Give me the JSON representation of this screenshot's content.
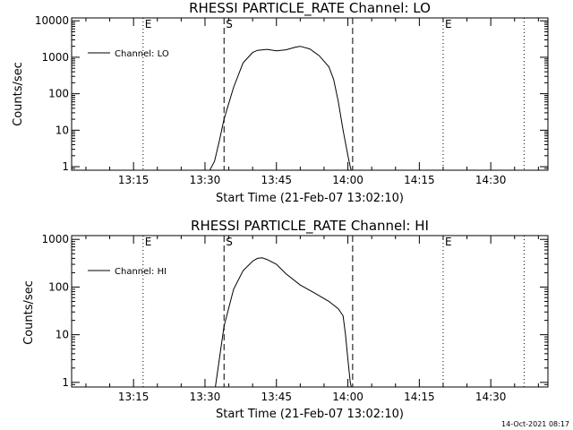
{
  "chart_data": [
    {
      "type": "line",
      "title": "RHESSI PARTICLE_RATE Channel: LO",
      "xlabel": "Start Time (21-Feb-07 13:02:10)",
      "ylabel": "Counts/sec",
      "yscale": "log",
      "xlim": [
        "13:02",
        "14:42"
      ],
      "ylim": [
        0.8,
        12000
      ],
      "xticks": [
        "13:15",
        "13:30",
        "13:45",
        "14:00",
        "14:15",
        "14:30"
      ],
      "yticks": [
        "1",
        "10",
        "100",
        "1000",
        "10000"
      ],
      "legend": {
        "position": "top-left",
        "entries": [
          "Channel: LO"
        ]
      },
      "series": [
        {
          "name": "Channel: LO",
          "x": [
            "13:30:30",
            "13:32",
            "13:33",
            "13:34",
            "13:36",
            "13:38",
            "13:40",
            "13:41",
            "13:43",
            "13:45",
            "13:47",
            "13:49",
            "13:50",
            "13:52",
            "13:54",
            "13:56",
            "13:57",
            "13:58",
            "13:59",
            "14:00",
            "14:00:30",
            "14:01"
          ],
          "y": [
            0.6,
            1.4,
            5,
            20,
            150,
            700,
            1350,
            1550,
            1650,
            1500,
            1600,
            1900,
            2000,
            1700,
            1100,
            550,
            250,
            60,
            10,
            2,
            1,
            0.6
          ]
        }
      ],
      "vlines": [
        {
          "x": "13:17",
          "style": "dotted",
          "label": "E"
        },
        {
          "x": "13:34",
          "style": "dashed",
          "label": "S"
        },
        {
          "x": "14:01",
          "style": "dashed",
          "label": ""
        },
        {
          "x": "14:20",
          "style": "dotted",
          "label": "E"
        },
        {
          "x": "14:37",
          "style": "dotted",
          "label": ""
        }
      ]
    },
    {
      "type": "line",
      "title": "RHESSI PARTICLE_RATE Channel: HI",
      "xlabel": "Start Time (21-Feb-07 13:02:10)",
      "ylabel": "Counts/sec",
      "yscale": "log",
      "xlim": [
        "13:02",
        "14:42"
      ],
      "ylim": [
        0.8,
        1200
      ],
      "xticks": [
        "13:15",
        "13:30",
        "13:45",
        "14:00",
        "14:15",
        "14:30"
      ],
      "yticks": [
        "1",
        "10",
        "100",
        "1000"
      ],
      "legend": {
        "position": "top-left",
        "entries": [
          "Channel: HI"
        ]
      },
      "series": [
        {
          "name": "Channel: HI",
          "x": [
            "13:32",
            "13:33",
            "13:34",
            "13:36",
            "13:38",
            "13:40",
            "13:41",
            "13:42",
            "13:43",
            "13:45",
            "13:47",
            "13:50",
            "13:53",
            "13:56",
            "13:58",
            "13:59",
            "13:59:30",
            "14:00",
            "14:00:30",
            "14:01"
          ],
          "y": [
            0.6,
            3,
            15,
            90,
            220,
            350,
            400,
            410,
            380,
            300,
            190,
            110,
            75,
            50,
            35,
            25,
            10,
            3,
            1,
            0.6
          ]
        }
      ],
      "vlines": [
        {
          "x": "13:17",
          "style": "dotted",
          "label": "E"
        },
        {
          "x": "13:34",
          "style": "dashed",
          "label": "S"
        },
        {
          "x": "14:01",
          "style": "dashed",
          "label": ""
        },
        {
          "x": "14:20",
          "style": "dotted",
          "label": "E"
        },
        {
          "x": "14:37",
          "style": "dotted",
          "label": ""
        }
      ]
    }
  ],
  "timestamp": "14-Oct-2021 08:17"
}
